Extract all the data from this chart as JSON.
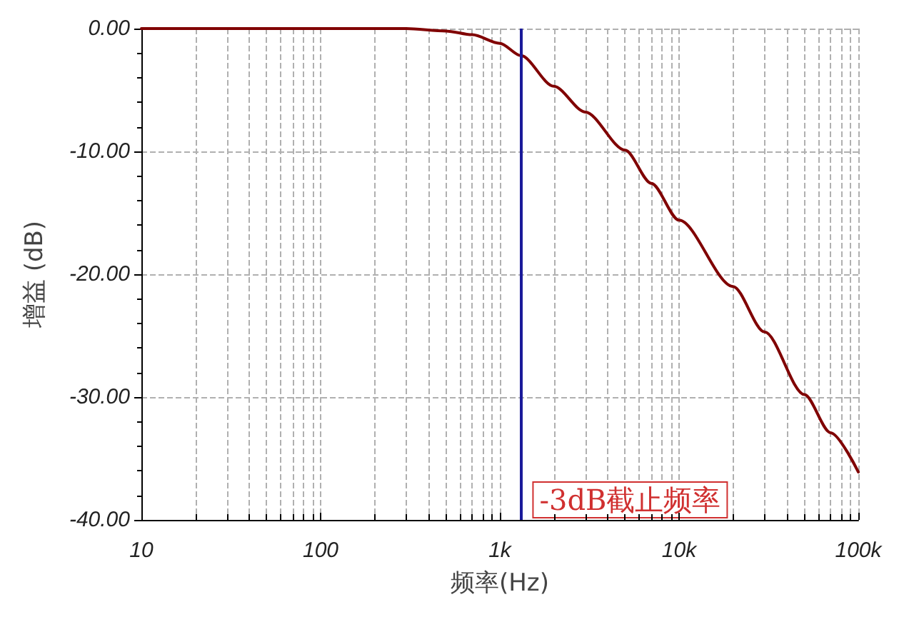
{
  "chart_data": {
    "type": "line",
    "xlabel": "频率(Hz)",
    "ylabel": "增益 (dB)",
    "log": "x",
    "x": [
      10,
      100,
      200,
      300,
      500,
      700,
      1000,
      1310,
      2000,
      3000,
      5000,
      7000,
      10000,
      20000,
      30000,
      50000,
      70000,
      100000
    ],
    "series": [
      {
        "color": "#800000",
        "values": [
          0,
          0,
          0,
          0,
          -0.2,
          -0.5,
          -1.2,
          -2.2,
          -4.7,
          -6.8,
          -9.9,
          -12.6,
          -15.6,
          -21.0,
          -24.7,
          -29.8,
          -32.9,
          -36.1
        ]
      }
    ],
    "xlim": [
      10,
      100000
    ],
    "xticks": [
      {
        "value": 10,
        "label": "10"
      },
      {
        "value": 100,
        "label": "100"
      },
      {
        "value": 1000,
        "label": "1k"
      },
      {
        "value": 10000,
        "label": "10k"
      },
      {
        "value": 100000,
        "label": "100k"
      }
    ],
    "ylim": [
      -40,
      0
    ],
    "yticks": [
      {
        "value": -40,
        "label": "-40.00"
      },
      {
        "value": -30,
        "label": "-30.00"
      },
      {
        "value": -20,
        "label": "-20.00"
      },
      {
        "value": -10,
        "label": "-10.00"
      },
      {
        "value": 0,
        "label": "0.00"
      }
    ],
    "grid": true,
    "marker": "none",
    "line_style": "solid",
    "ref_lines": [
      {
        "axis": "x",
        "value": 1310,
        "label": "-3dB截止频率",
        "color": "#1a1a9a"
      }
    ]
  }
}
